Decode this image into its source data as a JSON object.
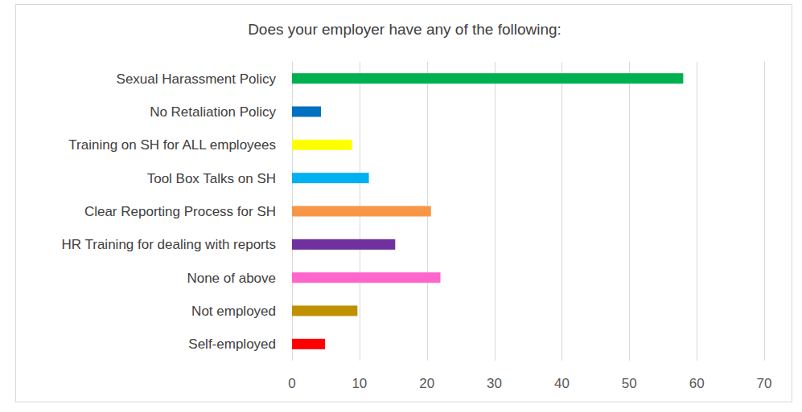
{
  "chart_data": {
    "type": "bar",
    "title": "Does your employer have any of the following:",
    "orientation": "horizontal",
    "categories": [
      "Sexual Harassment Policy",
      "No Retaliation Policy",
      "Training on SH for ALL employees",
      "Tool Box Talks on SH",
      "Clear Reporting Process for SH",
      "HR Training for dealing with reports",
      "None of above",
      "Not employed",
      "Self-employed"
    ],
    "values": [
      58,
      4.3,
      8.9,
      11.4,
      20.6,
      15.3,
      22,
      9.7,
      4.9
    ],
    "colors": [
      "#00b050",
      "#0070c0",
      "#ffff00",
      "#00b0f0",
      "#f79646",
      "#7030a0",
      "#ff66cc",
      "#bf9000",
      "#ff0000"
    ],
    "xlim": [
      0,
      70
    ],
    "xticks": [
      0,
      10,
      20,
      30,
      40,
      50,
      60,
      70
    ],
    "grid": true
  }
}
